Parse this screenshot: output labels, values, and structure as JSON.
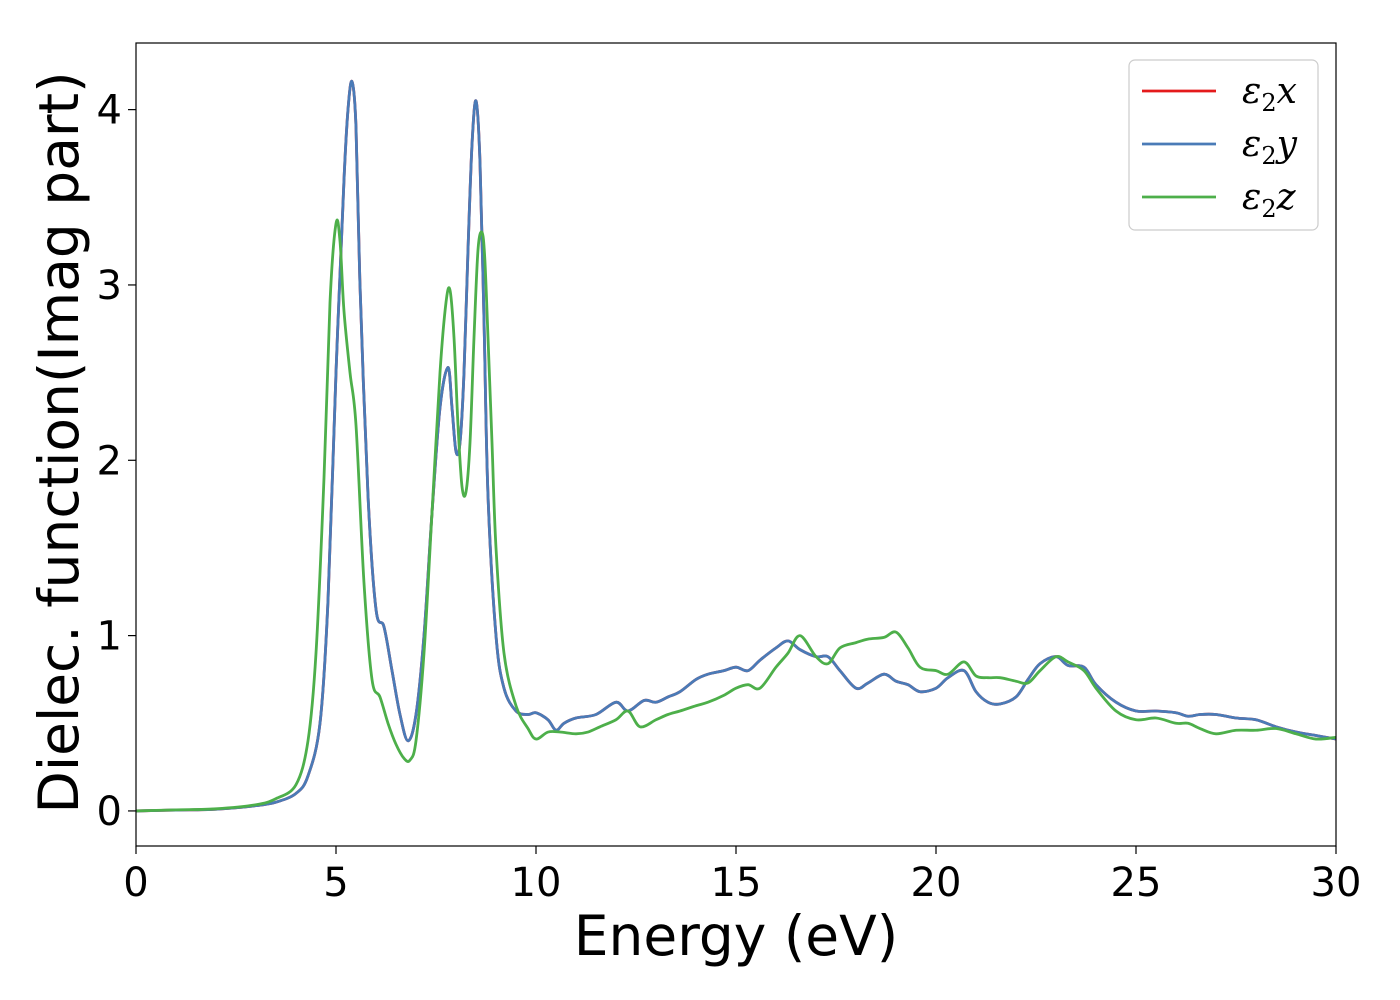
{
  "chart_data": {
    "type": "line",
    "xlabel": "Energy (eV)",
    "ylabel": "Dielec. function(Imag part)",
    "xlim": [
      0,
      30
    ],
    "ylim": [
      -0.2,
      4.38
    ],
    "xticks": [
      0,
      5,
      10,
      15,
      20,
      25,
      30
    ],
    "xtick_labels": [
      "0",
      "5",
      "10",
      "15",
      "20",
      "25",
      "30"
    ],
    "yticks": [
      0,
      1,
      2,
      3,
      4
    ],
    "ytick_labels": [
      "0",
      "1",
      "2",
      "3",
      "4"
    ],
    "grid": false,
    "legend_position": "top-right",
    "series": [
      {
        "name": "ε2x",
        "legend_base": "ε",
        "legend_sub": "2",
        "legend_suffix": "x",
        "color": "#e41a1c",
        "x": [
          0,
          1,
          2,
          3,
          3.5,
          4,
          4.3,
          4.6,
          4.8,
          5.0,
          5.2,
          5.3,
          5.4,
          5.5,
          5.6,
          5.8,
          6.0,
          6.2,
          6.4,
          6.6,
          6.8,
          7.0,
          7.2,
          7.4,
          7.6,
          7.8,
          7.9,
          8.0,
          8.1,
          8.2,
          8.3,
          8.4,
          8.5,
          8.6,
          8.7,
          8.8,
          9.0,
          9.2,
          9.5,
          9.8,
          10.0,
          10.3,
          10.5,
          10.7,
          11.0,
          11.5,
          12.0,
          12.3,
          12.7,
          13.0,
          13.3,
          13.6,
          14.0,
          14.3,
          14.7,
          15.0,
          15.3,
          15.6,
          16.0,
          16.3,
          16.6,
          17.0,
          17.3,
          17.6,
          18.0,
          18.3,
          18.7,
          19.0,
          19.3,
          19.6,
          20.0,
          20.3,
          20.7,
          21.0,
          21.3,
          21.6,
          22.0,
          22.3,
          22.6,
          23.0,
          23.3,
          23.7,
          24.0,
          24.5,
          25.0,
          25.5,
          26.0,
          26.3,
          26.6,
          27.0,
          27.5,
          28.0,
          28.5,
          29.0,
          29.5,
          30.0
        ],
        "values": [
          0.0,
          0.005,
          0.01,
          0.03,
          0.05,
          0.1,
          0.2,
          0.5,
          1.2,
          2.5,
          3.6,
          4.0,
          4.16,
          3.9,
          3.0,
          1.8,
          1.15,
          1.05,
          0.8,
          0.55,
          0.4,
          0.55,
          1.0,
          1.7,
          2.3,
          2.53,
          2.3,
          2.05,
          2.1,
          2.5,
          3.2,
          3.8,
          4.05,
          3.7,
          2.8,
          1.8,
          1.0,
          0.7,
          0.57,
          0.55,
          0.56,
          0.52,
          0.46,
          0.5,
          0.53,
          0.55,
          0.62,
          0.57,
          0.63,
          0.62,
          0.65,
          0.68,
          0.75,
          0.78,
          0.8,
          0.82,
          0.8,
          0.86,
          0.93,
          0.97,
          0.92,
          0.88,
          0.88,
          0.8,
          0.7,
          0.73,
          0.78,
          0.74,
          0.72,
          0.68,
          0.7,
          0.76,
          0.8,
          0.68,
          0.62,
          0.61,
          0.65,
          0.75,
          0.84,
          0.88,
          0.83,
          0.82,
          0.72,
          0.62,
          0.57,
          0.57,
          0.56,
          0.54,
          0.55,
          0.55,
          0.53,
          0.52,
          0.48,
          0.45,
          0.43,
          0.41
        ]
      },
      {
        "name": "ε2y",
        "legend_base": "ε",
        "legend_sub": "2",
        "legend_suffix": "y",
        "color": "#4a7bb7",
        "x": [
          0,
          1,
          2,
          3,
          3.5,
          4,
          4.3,
          4.6,
          4.8,
          5.0,
          5.2,
          5.3,
          5.4,
          5.5,
          5.6,
          5.8,
          6.0,
          6.2,
          6.4,
          6.6,
          6.8,
          7.0,
          7.2,
          7.4,
          7.6,
          7.8,
          7.9,
          8.0,
          8.1,
          8.2,
          8.3,
          8.4,
          8.5,
          8.6,
          8.7,
          8.8,
          9.0,
          9.2,
          9.5,
          9.8,
          10.0,
          10.3,
          10.5,
          10.7,
          11.0,
          11.5,
          12.0,
          12.3,
          12.7,
          13.0,
          13.3,
          13.6,
          14.0,
          14.3,
          14.7,
          15.0,
          15.3,
          15.6,
          16.0,
          16.3,
          16.6,
          17.0,
          17.3,
          17.6,
          18.0,
          18.3,
          18.7,
          19.0,
          19.3,
          19.6,
          20.0,
          20.3,
          20.7,
          21.0,
          21.3,
          21.6,
          22.0,
          22.3,
          22.6,
          23.0,
          23.3,
          23.7,
          24.0,
          24.5,
          25.0,
          25.5,
          26.0,
          26.3,
          26.6,
          27.0,
          27.5,
          28.0,
          28.5,
          29.0,
          29.5,
          30.0
        ],
        "values": [
          0.0,
          0.005,
          0.01,
          0.03,
          0.05,
          0.1,
          0.2,
          0.5,
          1.2,
          2.5,
          3.6,
          4.0,
          4.16,
          3.9,
          3.0,
          1.8,
          1.15,
          1.05,
          0.8,
          0.55,
          0.4,
          0.55,
          1.0,
          1.7,
          2.3,
          2.53,
          2.3,
          2.05,
          2.1,
          2.5,
          3.2,
          3.8,
          4.05,
          3.7,
          2.8,
          1.8,
          1.0,
          0.7,
          0.57,
          0.55,
          0.56,
          0.52,
          0.46,
          0.5,
          0.53,
          0.55,
          0.62,
          0.57,
          0.63,
          0.62,
          0.65,
          0.68,
          0.75,
          0.78,
          0.8,
          0.82,
          0.8,
          0.86,
          0.93,
          0.97,
          0.92,
          0.88,
          0.88,
          0.8,
          0.7,
          0.73,
          0.78,
          0.74,
          0.72,
          0.68,
          0.7,
          0.76,
          0.8,
          0.68,
          0.62,
          0.61,
          0.65,
          0.75,
          0.84,
          0.88,
          0.83,
          0.82,
          0.72,
          0.62,
          0.57,
          0.57,
          0.56,
          0.54,
          0.55,
          0.55,
          0.53,
          0.52,
          0.48,
          0.45,
          0.43,
          0.41
        ]
      },
      {
        "name": "ε2z",
        "legend_base": "ε",
        "legend_sub": "2",
        "legend_suffix": "z",
        "color": "#4daf4a",
        "x": [
          0,
          1,
          2,
          3,
          3.5,
          4,
          4.3,
          4.5,
          4.7,
          4.85,
          5.0,
          5.1,
          5.2,
          5.35,
          5.5,
          5.7,
          5.9,
          6.1,
          6.3,
          6.5,
          6.7,
          6.85,
          7.0,
          7.2,
          7.4,
          7.6,
          7.75,
          7.85,
          7.95,
          8.05,
          8.15,
          8.25,
          8.35,
          8.45,
          8.55,
          8.65,
          8.72,
          8.8,
          8.9,
          9.0,
          9.2,
          9.5,
          9.8,
          10.0,
          10.3,
          10.6,
          11.0,
          11.3,
          11.6,
          12.0,
          12.3,
          12.6,
          13.0,
          13.3,
          13.6,
          14.0,
          14.3,
          14.7,
          15.0,
          15.3,
          15.6,
          16.0,
          16.3,
          16.6,
          17.0,
          17.3,
          17.6,
          18.0,
          18.3,
          18.7,
          19.0,
          19.3,
          19.6,
          20.0,
          20.3,
          20.7,
          21.0,
          21.3,
          21.6,
          22.0,
          22.3,
          22.6,
          23.0,
          23.3,
          23.7,
          24.0,
          24.5,
          25.0,
          25.5,
          26.0,
          26.3,
          26.6,
          27.0,
          27.5,
          28.0,
          28.5,
          29.0,
          29.5,
          30.0
        ],
        "values": [
          0.0,
          0.006,
          0.012,
          0.035,
          0.07,
          0.15,
          0.4,
          0.9,
          1.9,
          2.9,
          3.35,
          3.25,
          2.85,
          2.5,
          2.2,
          1.3,
          0.75,
          0.65,
          0.5,
          0.38,
          0.3,
          0.29,
          0.4,
          0.9,
          1.7,
          2.5,
          2.9,
          2.97,
          2.7,
          2.2,
          1.85,
          1.82,
          2.1,
          2.7,
          3.2,
          3.3,
          3.15,
          2.7,
          2.1,
          1.5,
          0.9,
          0.6,
          0.47,
          0.41,
          0.45,
          0.45,
          0.44,
          0.45,
          0.48,
          0.52,
          0.57,
          0.48,
          0.52,
          0.55,
          0.57,
          0.6,
          0.62,
          0.66,
          0.7,
          0.72,
          0.7,
          0.82,
          0.9,
          1.0,
          0.88,
          0.84,
          0.93,
          0.96,
          0.98,
          0.99,
          1.02,
          0.93,
          0.82,
          0.8,
          0.78,
          0.85,
          0.77,
          0.76,
          0.76,
          0.74,
          0.73,
          0.8,
          0.88,
          0.85,
          0.8,
          0.7,
          0.57,
          0.52,
          0.53,
          0.5,
          0.5,
          0.47,
          0.44,
          0.46,
          0.46,
          0.47,
          0.44,
          0.41,
          0.42
        ]
      }
    ]
  }
}
